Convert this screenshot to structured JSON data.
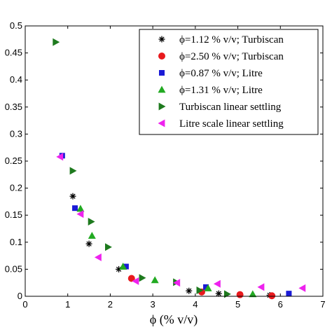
{
  "chart_data": {
    "type": "scatter",
    "xlabel": "ϕ (% v/v)",
    "ylabel": "",
    "xlim": [
      0,
      7
    ],
    "ylim": [
      0,
      0.5
    ],
    "xticks": [
      "0",
      "1",
      "2",
      "3",
      "4",
      "5",
      "6",
      "7"
    ],
    "yticks": [
      "0",
      "0.05",
      "0.1",
      "0.15",
      "0.2",
      "0.25",
      "0.3",
      "0.35",
      "0.4",
      "0.45",
      "0.5"
    ],
    "grid": false,
    "legend_position": "top-right",
    "series": [
      {
        "name": "ϕ=1.12 % v/v; Turbiscan",
        "marker": "asterisk",
        "color": "#000000",
        "points": [
          [
            1.12,
            0.185
          ],
          [
            1.5,
            0.097
          ],
          [
            2.2,
            0.05
          ],
          [
            3.85,
            0.01
          ],
          [
            4.55,
            0.005
          ],
          [
            5.75,
            0.002
          ]
        ]
      },
      {
        "name": "ϕ=2.50 % v/v; Turbiscan",
        "marker": "circle",
        "color": "#e8191d",
        "points": [
          [
            2.5,
            0.033
          ],
          [
            4.15,
            0.008
          ],
          [
            5.05,
            0.003
          ],
          [
            5.8,
            0.001
          ]
        ]
      },
      {
        "name": "ϕ=0.87 % v/v; Litre",
        "marker": "square",
        "color": "#1a1ad6",
        "points": [
          [
            0.87,
            0.26
          ],
          [
            1.17,
            0.163
          ],
          [
            2.37,
            0.055
          ],
          [
            4.25,
            0.017
          ],
          [
            6.2,
            0.005
          ]
        ]
      },
      {
        "name": "ϕ=1.31 % v/v; Litre",
        "marker": "triangle-up",
        "color": "#22aa22",
        "points": [
          [
            1.3,
            0.162
          ],
          [
            1.57,
            0.112
          ],
          [
            2.3,
            0.055
          ],
          [
            3.05,
            0.03
          ],
          [
            4.3,
            0.015
          ],
          [
            5.35,
            0.004
          ]
        ]
      },
      {
        "name": "Turbiscan linear settling",
        "marker": "triangle-right",
        "color": "#1e7a1e",
        "points": [
          [
            0.72,
            0.47
          ],
          [
            1.12,
            0.232
          ],
          [
            1.55,
            0.138
          ],
          [
            1.95,
            0.091
          ],
          [
            2.75,
            0.034
          ],
          [
            3.55,
            0.026
          ],
          [
            4.1,
            0.011
          ],
          [
            4.75,
            0.004
          ]
        ]
      },
      {
        "name": "Litre scale linear settling",
        "marker": "triangle-left",
        "color": "#ee22ee",
        "points": [
          [
            0.82,
            0.258
          ],
          [
            1.3,
            0.152
          ],
          [
            1.72,
            0.072
          ],
          [
            2.6,
            0.028
          ],
          [
            3.57,
            0.025
          ],
          [
            4.52,
            0.023
          ],
          [
            5.55,
            0.017
          ],
          [
            6.52,
            0.015
          ]
        ]
      }
    ]
  }
}
